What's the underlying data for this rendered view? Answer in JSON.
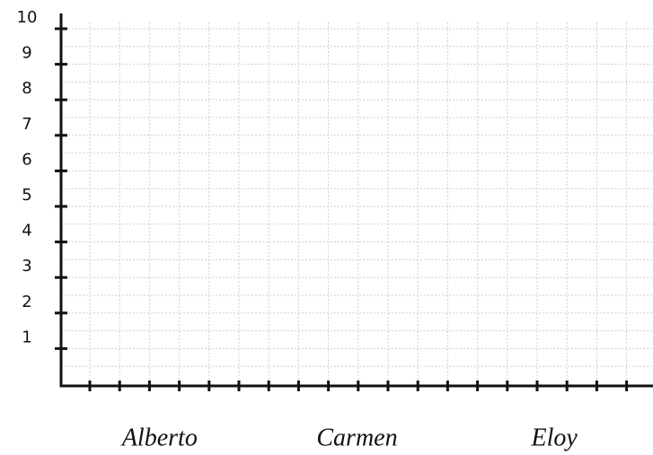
{
  "chart_data": {
    "type": "bar",
    "categories": [
      "Alberto",
      "Carmen",
      "Eloy"
    ],
    "ylim": [
      0,
      10
    ],
    "yticks": [
      1,
      2,
      3,
      4,
      5,
      6,
      7,
      8,
      9,
      10
    ],
    "grid": true
  }
}
